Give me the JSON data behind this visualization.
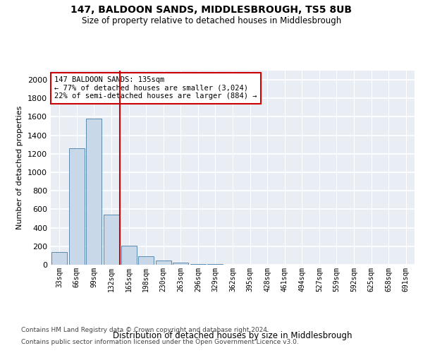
{
  "title": "147, BALDOON SANDS, MIDDLESBROUGH, TS5 8UB",
  "subtitle": "Size of property relative to detached houses in Middlesbrough",
  "xlabel": "Distribution of detached houses by size in Middlesbrough",
  "ylabel": "Number of detached properties",
  "categories": [
    "33sqm",
    "66sqm",
    "99sqm",
    "132sqm",
    "165sqm",
    "198sqm",
    "230sqm",
    "263sqm",
    "296sqm",
    "329sqm",
    "362sqm",
    "395sqm",
    "428sqm",
    "461sqm",
    "494sqm",
    "527sqm",
    "559sqm",
    "592sqm",
    "625sqm",
    "658sqm",
    "691sqm"
  ],
  "values": [
    140,
    1260,
    1580,
    540,
    210,
    90,
    45,
    25,
    10,
    5,
    2,
    0,
    0,
    0,
    0,
    0,
    0,
    0,
    0,
    0,
    0
  ],
  "bar_color": "#c8d8e8",
  "bar_edge_color": "#5a8ab0",
  "background_color": "#e8eef4",
  "grid_color": "#ffffff",
  "vline_color": "#cc0000",
  "annotation_text": "147 BALDOON SANDS: 135sqm\n← 77% of detached houses are smaller (3,024)\n22% of semi-detached houses are larger (884) →",
  "annotation_box_color": "#ffffff",
  "annotation_box_edge": "#cc0000",
  "ylim": [
    0,
    2100
  ],
  "yticks": [
    0,
    200,
    400,
    600,
    800,
    1000,
    1200,
    1400,
    1600,
    1800,
    2000
  ],
  "footer_line1": "Contains HM Land Registry data © Crown copyright and database right 2024.",
  "footer_line2": "Contains public sector information licensed under the Open Government Licence v3.0."
}
